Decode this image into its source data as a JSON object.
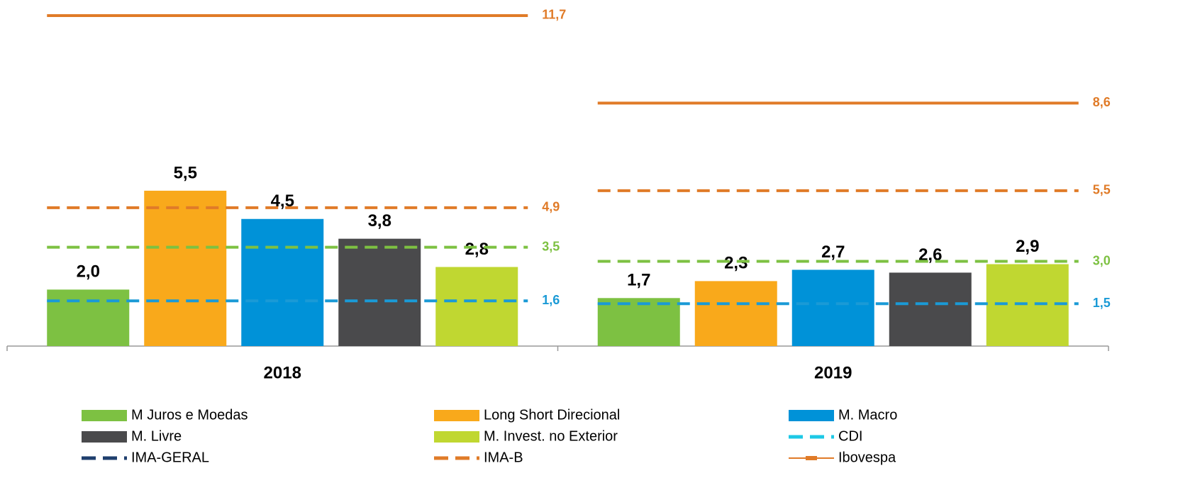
{
  "chart_data": {
    "type": "bar",
    "categories": [
      "2018",
      "2019"
    ],
    "ylim": [
      0,
      12
    ],
    "series": [
      {
        "name": "M Juros e Moedas",
        "color": "#7dc142",
        "values": [
          2.0,
          1.7
        ],
        "value_labels": [
          "2,0",
          "1,7"
        ]
      },
      {
        "name": "Long Short Direcional",
        "color": "#f9a91b",
        "values": [
          5.5,
          2.3
        ],
        "value_labels": [
          "5,5",
          "2,3"
        ]
      },
      {
        "name": "M. Macro",
        "color": "#0092d8",
        "values": [
          4.5,
          2.7
        ],
        "value_labels": [
          "4,5",
          "2,7"
        ]
      },
      {
        "name": "M. Livre",
        "color": "#4a4a4c",
        "values": [
          3.8,
          2.6
        ],
        "value_labels": [
          "3,8",
          "2,6"
        ]
      },
      {
        "name": "M. Invest. no Exterior",
        "color": "#c0d731",
        "values": [
          2.8,
          2.9
        ],
        "value_labels": [
          "2,8",
          "2,9"
        ]
      }
    ],
    "lines": [
      {
        "name": "CDI",
        "color": "#1a9ad6",
        "legend_color": "#1ec8e6",
        "dashed": true,
        "values": [
          1.6,
          1.5
        ],
        "value_labels": [
          "1,6",
          "1,5"
        ]
      },
      {
        "name": "IMA-GERAL",
        "color": "#7dc142",
        "legend_color": "#1f3f6e",
        "dashed": true,
        "values": [
          3.5,
          3.0
        ],
        "value_labels": [
          "3,5",
          "3,0"
        ]
      },
      {
        "name": "IMA-B",
        "color": "#e07b28",
        "legend_color": "#e07b28",
        "dashed": true,
        "values": [
          4.9,
          5.5
        ],
        "value_labels": [
          "4,9",
          "5,5"
        ]
      },
      {
        "name": "Ibovespa",
        "color": "#e07b28",
        "legend_color": "#e07b28",
        "dashed": false,
        "values": [
          11.7,
          8.6
        ],
        "value_labels": [
          "11,7",
          "8,6"
        ]
      }
    ]
  }
}
